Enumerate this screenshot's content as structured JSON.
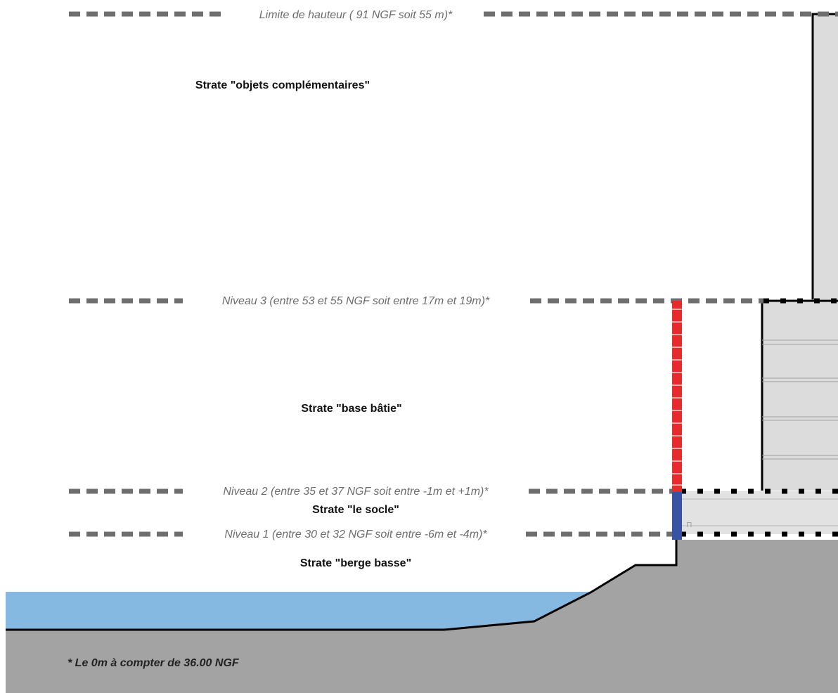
{
  "levels": {
    "height_limit": "Limite de hauteur ( 91 NGF soit  55 m)*",
    "level3": "Niveau 3 (entre 53 et 55 NGF soit entre 17m et 19m)*",
    "level2": "Niveau 2 (entre 35 et 37 NGF soit entre -1m et +1m)*",
    "level1": "Niveau 1 (entre 30 et 32 NGF soit entre -6m et -4m)*"
  },
  "strata": {
    "objets": "Strate \"objets complémentaires\"",
    "base": "Strate \"base bâtie\"",
    "socle": "Strate \"le socle\"",
    "berge": "Strate \"berge basse\""
  },
  "footnote": "* Le 0m à compter de 36.00 NGF",
  "colors": {
    "dash": "#6e6e6e",
    "ground": "#a3a3a3",
    "water": "#86b9e1",
    "building": "#dcdcdc",
    "socle_fill": "#e2e2e2",
    "red_bar": "#e52b2b",
    "blue_bar": "#3a52a3"
  }
}
